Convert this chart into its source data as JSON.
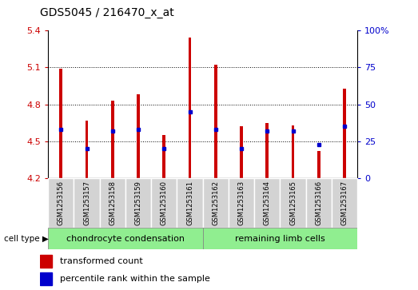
{
  "title": "GDS5045 / 216470_x_at",
  "samples": [
    "GSM1253156",
    "GSM1253157",
    "GSM1253158",
    "GSM1253159",
    "GSM1253160",
    "GSM1253161",
    "GSM1253162",
    "GSM1253163",
    "GSM1253164",
    "GSM1253165",
    "GSM1253166",
    "GSM1253167"
  ],
  "transformed_count": [
    5.09,
    4.67,
    4.83,
    4.88,
    4.55,
    5.34,
    5.12,
    4.62,
    4.65,
    4.63,
    4.42,
    4.93
  ],
  "percentile_rank": [
    33,
    20,
    32,
    33,
    20,
    45,
    33,
    20,
    32,
    32,
    23,
    35
  ],
  "bar_bottom": 4.2,
  "ylim": [
    4.2,
    5.4
  ],
  "right_ylim": [
    0,
    100
  ],
  "right_yticks": [
    0,
    25,
    50,
    75,
    100
  ],
  "right_yticklabels": [
    "0",
    "25",
    "50",
    "75",
    "100%"
  ],
  "left_yticks": [
    4.2,
    4.5,
    4.8,
    5.1,
    5.4
  ],
  "bar_color": "#cc0000",
  "dot_color": "#0000cc",
  "grid_color": "#000000",
  "group1_label": "chondrocyte condensation",
  "group2_label": "remaining limb cells",
  "group1_count": 6,
  "group2_count": 6,
  "cell_type_label": "cell type",
  "legend1": "transformed count",
  "legend2": "percentile rank within the sample",
  "bg_color": "#d3d3d3",
  "group_bg_color": "#90ee90",
  "title_color": "#000000",
  "left_tick_color": "#cc0000",
  "right_tick_color": "#0000cc",
  "bar_width": 0.12
}
